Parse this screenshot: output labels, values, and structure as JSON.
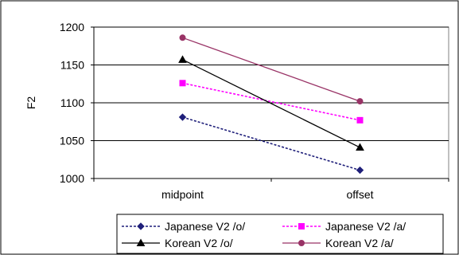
{
  "chart_data": {
    "type": "line",
    "title": "",
    "xlabel": "",
    "ylabel": "F2",
    "categories": [
      "midpoint",
      "offset"
    ],
    "ylim": [
      1000,
      1200
    ],
    "yticks": [
      1000,
      1050,
      1100,
      1150,
      1200
    ],
    "grid": "horizontal",
    "legend_position": "bottom",
    "series": [
      {
        "name": "Japanese V2 /o/",
        "values": [
          1081,
          1011
        ],
        "color": "#1F1F7A",
        "line_style": "dotted",
        "marker": "diamond"
      },
      {
        "name": "Japanese V2 /a/",
        "values": [
          1126,
          1077
        ],
        "color": "#FF00FF",
        "line_style": "dotted",
        "marker": "square"
      },
      {
        "name": "Korean V2 /o/",
        "values": [
          1157,
          1041
        ],
        "color": "#000000",
        "line_style": "solid",
        "marker": "triangle"
      },
      {
        "name": "Korean V2 /a/",
        "values": [
          1186,
          1102
        ],
        "color": "#993366",
        "line_style": "solid",
        "marker": "circle"
      }
    ]
  }
}
